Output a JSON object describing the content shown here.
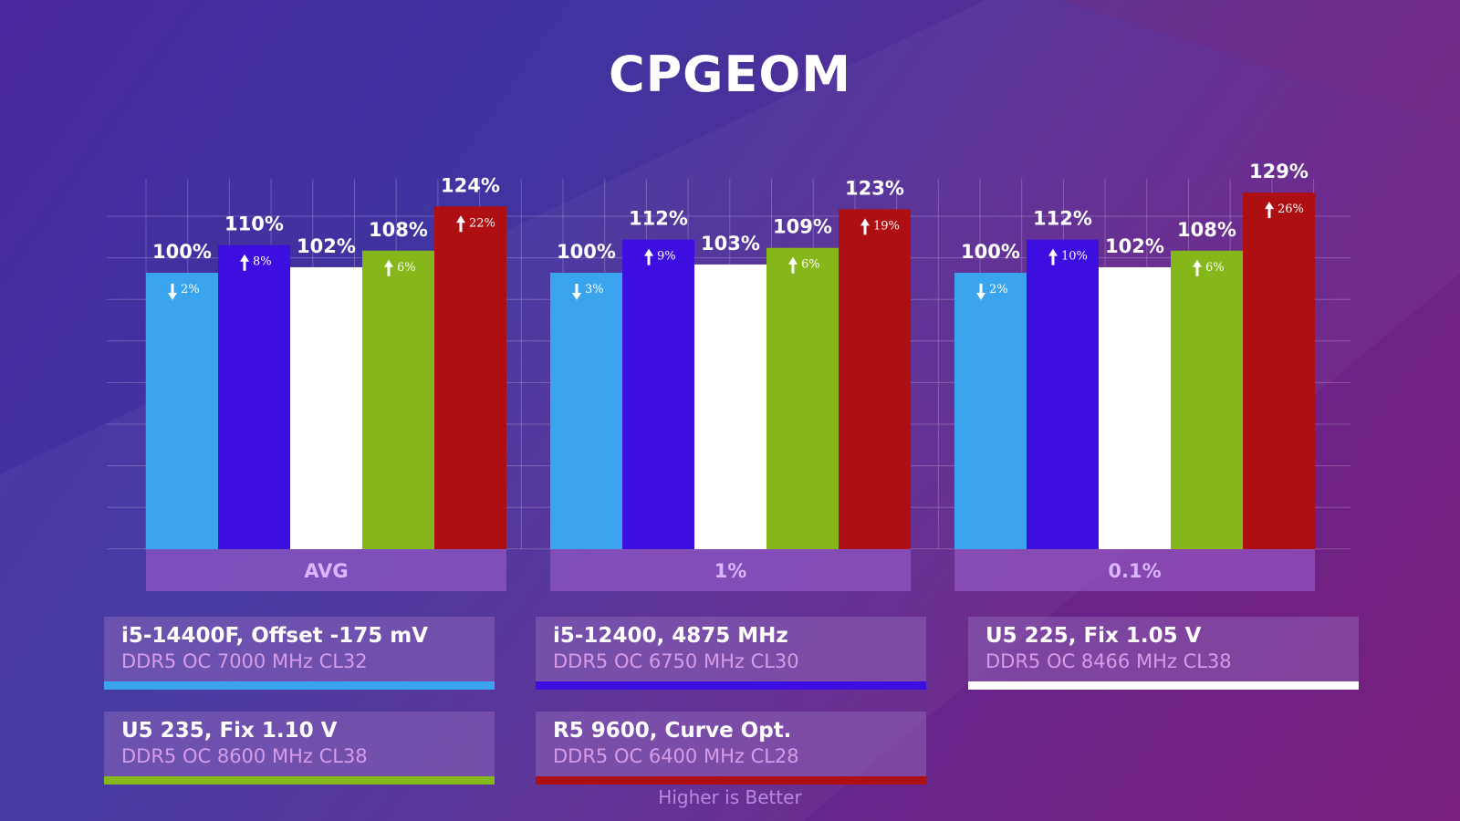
{
  "title": "CPGEOM",
  "note": "Higher is Better",
  "chart_data": {
    "type": "bar",
    "title": "CPGEOM",
    "categories": [
      "AVG",
      "1%",
      "0.1%"
    ],
    "ylim": [
      0,
      134
    ],
    "grid": true,
    "series": [
      {
        "name": "i5-14400F, Offset -175 mV",
        "color": "#3aa4ef",
        "values": [
          100,
          100,
          100
        ],
        "values_label": [
          "100%",
          "100%",
          "100%"
        ],
        "delta": [
          "-2%",
          "-3%",
          "-2%"
        ]
      },
      {
        "name": "i5-12400, 4875 MHz",
        "color": "#3d0ee0",
        "values": [
          110,
          112,
          112
        ],
        "values_label": [
          "110%",
          "112%",
          "112%"
        ],
        "delta": [
          "8%",
          "9%",
          "10%"
        ]
      },
      {
        "name": "U5 225, Fix 1.05 V",
        "color": "#ffffff",
        "values": [
          102,
          103,
          102
        ],
        "values_label": [
          "102%",
          "103%",
          "102%"
        ],
        "delta": [
          "",
          "",
          ""
        ]
      },
      {
        "name": "U5 235, Fix 1.10 V",
        "color": "#86b71a",
        "values": [
          108,
          109,
          108
        ],
        "values_label": [
          "108%",
          "109%",
          "108%"
        ],
        "delta": [
          "6%",
          "6%",
          "6%"
        ]
      },
      {
        "name": "R5 9600, Curve Opt.",
        "color": "#ad0f12",
        "values": [
          124,
          123,
          129
        ],
        "values_label": [
          "124%",
          "123%",
          "129%"
        ],
        "delta": [
          "22%",
          "19%",
          "26%"
        ]
      }
    ]
  },
  "legend": [
    {
      "name": "i5-14400F, Offset -175 mV",
      "sub": "DDR5 OC 7000 MHz CL32",
      "color": "#3aa4ef"
    },
    {
      "name": "i5-12400, 4875 MHz",
      "sub": "DDR5 OC 6750 MHz CL30",
      "color": "#3d0ee0"
    },
    {
      "name": "U5 225, Fix 1.05 V",
      "sub": "DDR5 OC 8466 MHz CL38",
      "color": "#ffffff"
    },
    {
      "name": "U5 235, Fix 1.10 V",
      "sub": "DDR5 OC 8600 MHz CL38",
      "color": "#86b71a"
    },
    {
      "name": "R5 9600, Curve Opt.",
      "sub": "DDR5 OC 6400 MHz CL28",
      "color": "#ad0f12"
    }
  ]
}
